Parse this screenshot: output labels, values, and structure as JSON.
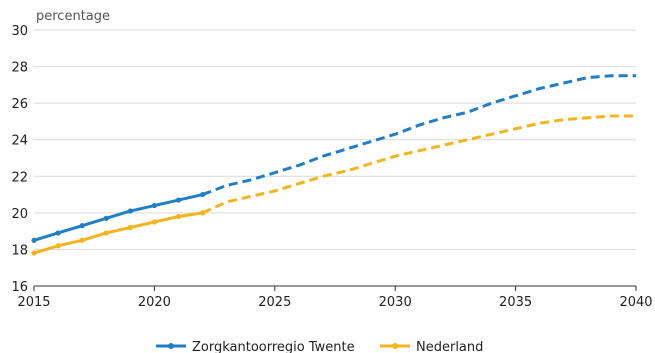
{
  "chart_data": {
    "type": "line",
    "ylabel": "percentage",
    "ylim": [
      16,
      30
    ],
    "xlim": [
      2015,
      2040
    ],
    "y_ticks": [
      16,
      18,
      20,
      22,
      24,
      26,
      28,
      30
    ],
    "x_ticks": [
      2015,
      2020,
      2025,
      2030,
      2035,
      2040
    ],
    "grid": true,
    "legend_position": "bottom",
    "series": [
      {
        "name": "Zorgkantoorregio Twente",
        "color": "#1f7fc4",
        "solid_until": 2022,
        "points": [
          {
            "x": 2015,
            "y": 18.5
          },
          {
            "x": 2016,
            "y": 18.9
          },
          {
            "x": 2017,
            "y": 19.3
          },
          {
            "x": 2018,
            "y": 19.7
          },
          {
            "x": 2019,
            "y": 20.1
          },
          {
            "x": 2020,
            "y": 20.4
          },
          {
            "x": 2021,
            "y": 20.7
          },
          {
            "x": 2022,
            "y": 21.0
          },
          {
            "x": 2023,
            "y": 21.5
          },
          {
            "x": 2024,
            "y": 21.8
          },
          {
            "x": 2025,
            "y": 22.2
          },
          {
            "x": 2026,
            "y": 22.6
          },
          {
            "x": 2027,
            "y": 23.1
          },
          {
            "x": 2028,
            "y": 23.5
          },
          {
            "x": 2029,
            "y": 23.9
          },
          {
            "x": 2030,
            "y": 24.3
          },
          {
            "x": 2031,
            "y": 24.8
          },
          {
            "x": 2032,
            "y": 25.2
          },
          {
            "x": 2033,
            "y": 25.5
          },
          {
            "x": 2034,
            "y": 26.0
          },
          {
            "x": 2035,
            "y": 26.4
          },
          {
            "x": 2036,
            "y": 26.8
          },
          {
            "x": 2037,
            "y": 27.1
          },
          {
            "x": 2038,
            "y": 27.4
          },
          {
            "x": 2039,
            "y": 27.5
          },
          {
            "x": 2040,
            "y": 27.5
          }
        ]
      },
      {
        "name": "Nederland",
        "color": "#f5b41e",
        "solid_until": 2022,
        "points": [
          {
            "x": 2015,
            "y": 17.8
          },
          {
            "x": 2016,
            "y": 18.2
          },
          {
            "x": 2017,
            "y": 18.5
          },
          {
            "x": 2018,
            "y": 18.9
          },
          {
            "x": 2019,
            "y": 19.2
          },
          {
            "x": 2020,
            "y": 19.5
          },
          {
            "x": 2021,
            "y": 19.8
          },
          {
            "x": 2022,
            "y": 20.0
          },
          {
            "x": 2023,
            "y": 20.6
          },
          {
            "x": 2024,
            "y": 20.9
          },
          {
            "x": 2025,
            "y": 21.2
          },
          {
            "x": 2026,
            "y": 21.6
          },
          {
            "x": 2027,
            "y": 22.0
          },
          {
            "x": 2028,
            "y": 22.3
          },
          {
            "x": 2029,
            "y": 22.7
          },
          {
            "x": 2030,
            "y": 23.1
          },
          {
            "x": 2031,
            "y": 23.4
          },
          {
            "x": 2032,
            "y": 23.7
          },
          {
            "x": 2033,
            "y": 24.0
          },
          {
            "x": 2034,
            "y": 24.3
          },
          {
            "x": 2035,
            "y": 24.6
          },
          {
            "x": 2036,
            "y": 24.9
          },
          {
            "x": 2037,
            "y": 25.1
          },
          {
            "x": 2038,
            "y": 25.2
          },
          {
            "x": 2039,
            "y": 25.3
          },
          {
            "x": 2040,
            "y": 25.3
          }
        ]
      }
    ]
  }
}
